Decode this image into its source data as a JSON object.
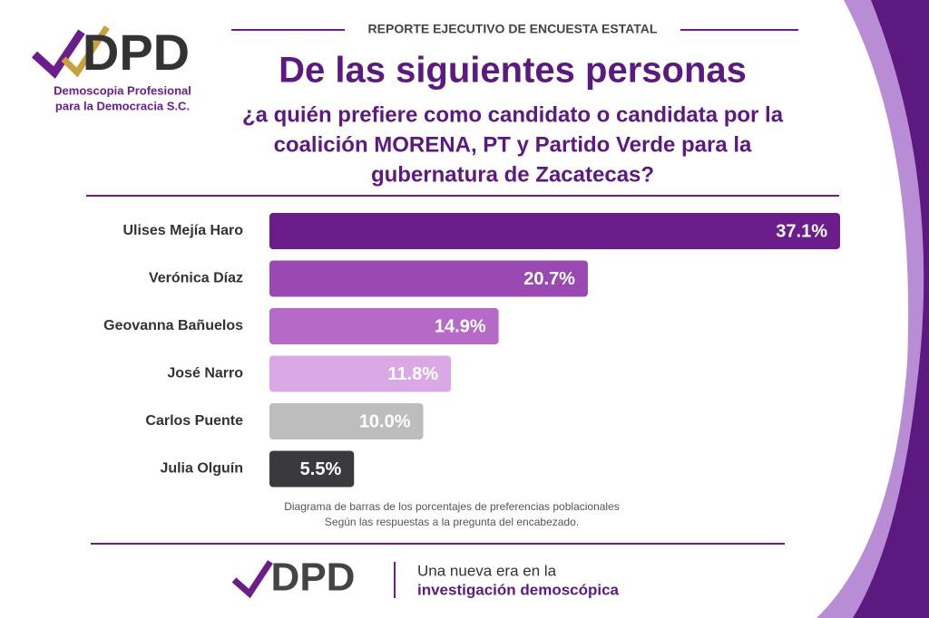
{
  "header": {
    "logo": "DPD",
    "org_lines": [
      "Demoscopia Profesional",
      "para la Democracia S.C."
    ],
    "kicker": "REPORTE EJECUTIVO DE ENCUESTA ESTATAL",
    "title": "De las siguientes personas",
    "question": [
      "¿a quién prefiere como candidato o candidata por la",
      "coalición MORENA, PT y Partido Verde para la",
      "gubernatura de Zacatecas?"
    ]
  },
  "chart_data": {
    "type": "bar",
    "orientation": "horizontal",
    "categories": [
      "Ulises Mejía Haro",
      "Verónica Díaz",
      "Geovanna Bañuelos",
      "José Narro",
      "Carlos Puente",
      "Julia Olguín"
    ],
    "values": [
      37.1,
      20.7,
      14.9,
      11.8,
      10.0,
      5.5
    ],
    "value_labels": [
      "37.1%",
      "20.7%",
      "14.9%",
      "11.8%",
      "10.0%",
      "5.5%"
    ],
    "colors": [
      "#6b1d8c",
      "#9a48b2",
      "#b66ac8",
      "#dba8e6",
      "#bdbdbd",
      "#3a3a3e"
    ]
  },
  "caption": [
    "Diagrama de barras de los porcentajes de preferencias poblacionales",
    "Según las respuestas a la pregunta del encabezado."
  ],
  "footer": {
    "logo": "DPD",
    "tagline": [
      "Una nueva era en la",
      "investigación demoscópica"
    ]
  }
}
